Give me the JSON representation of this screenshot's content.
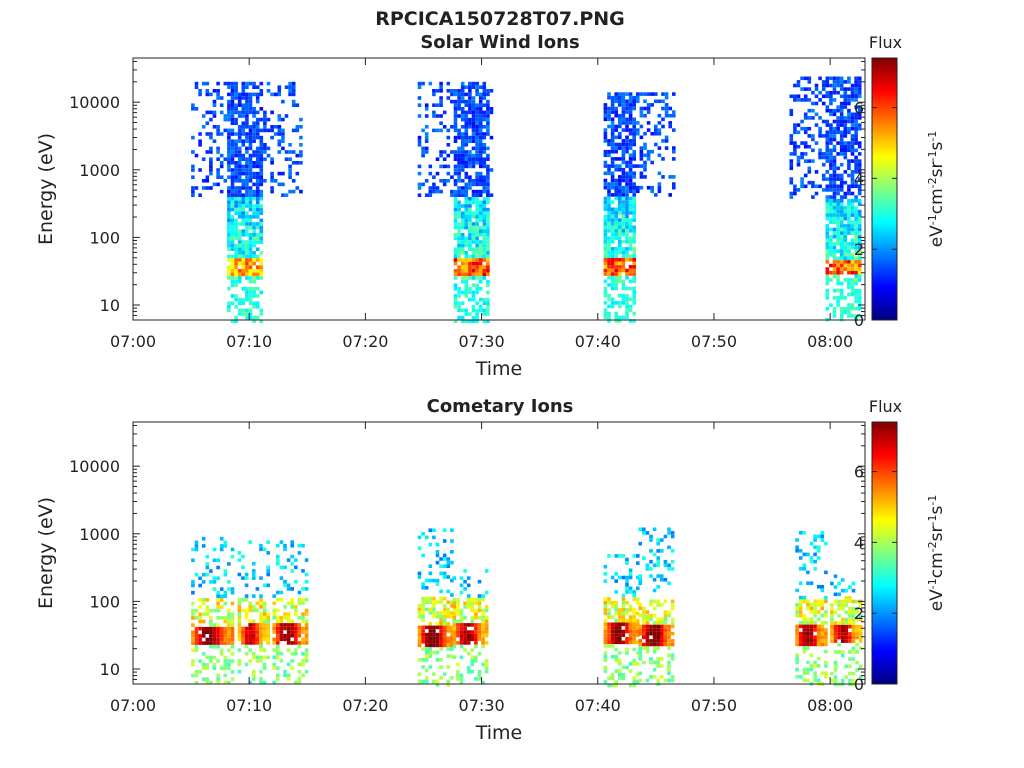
{
  "figure": {
    "title": "RPCICA150728T07.PNG"
  },
  "colorbar": {
    "label_top": "Flux",
    "unit_parts": [
      "eV",
      "-1",
      "cm",
      "-2",
      "sr",
      "-1",
      "s",
      "-1"
    ],
    "ticks": [
      "0",
      "2",
      "4",
      "6"
    ],
    "range": [
      0,
      7.4
    ],
    "colormap": "jet",
    "colormap_stops": [
      "#00007f",
      "#0000ff",
      "#007fff",
      "#00ffff",
      "#7fff7f",
      "#ffff00",
      "#ff7f00",
      "#ff0000",
      "#7f0000"
    ]
  },
  "chart_data": [
    {
      "type": "heatmap",
      "title": "Solar Wind Ions",
      "xlabel": "Time",
      "ylabel": "Energy (eV)",
      "xlim": [
        "07:00",
        "08:03"
      ],
      "ylim": [
        6,
        45000
      ],
      "yscale": "log",
      "xticks": [
        "07:00",
        "07:10",
        "07:20",
        "07:30",
        "07:40",
        "07:50",
        "08:00"
      ],
      "yticks": [
        "10",
        "100",
        "1000",
        "10000"
      ],
      "bursts": [
        {
          "start": "07:05",
          "end": "07:14.5",
          "core_start": "07:08",
          "core_end": "07:11",
          "max_energy": 20000,
          "peak_energy": 38,
          "peak_flux": 5.8
        },
        {
          "start": "07:24.5",
          "end": "07:31",
          "core_start": "07:27.5",
          "core_end": "07:30.5",
          "max_energy": 20000,
          "peak_energy": 38,
          "peak_flux": 6.5
        },
        {
          "start": "07:40.5",
          "end": "07:46.5",
          "core_start": "07:40.5",
          "core_end": "07:43",
          "max_energy": 14000,
          "peak_energy": 38,
          "peak_flux": 6.5
        },
        {
          "start": "07:56.5",
          "end": "08:02.5",
          "core_start": "07:59.5",
          "core_end": "08:02.5",
          "max_energy": 24000,
          "peak_energy": 38,
          "peak_flux": 6.4
        }
      ]
    },
    {
      "type": "heatmap",
      "title": "Cometary Ions",
      "xlabel": "Time",
      "ylabel": "Energy (eV)",
      "xlim": [
        "07:00",
        "08:03"
      ],
      "ylim": [
        6,
        45000
      ],
      "yscale": "log",
      "xticks": [
        "07:00",
        "07:10",
        "07:20",
        "07:30",
        "07:40",
        "07:50",
        "08:00"
      ],
      "yticks": [
        "10",
        "100",
        "1000",
        "10000"
      ],
      "bursts": [
        {
          "start": "07:05",
          "end": "07:08.5",
          "max_energy": 900,
          "peak_energy": 32,
          "peak_flux": 7.2
        },
        {
          "start": "07:09",
          "end": "07:11.5",
          "max_energy": 800,
          "peak_energy": 34,
          "peak_flux": 6.6
        },
        {
          "start": "07:12",
          "end": "07:15",
          "max_energy": 800,
          "peak_energy": 34,
          "peak_flux": 7.0
        },
        {
          "start": "07:24.5",
          "end": "07:27.5",
          "max_energy": 1200,
          "peak_energy": 32,
          "peak_flux": 7.2
        },
        {
          "start": "07:27.5",
          "end": "07:30.5",
          "max_energy": 300,
          "peak_energy": 36,
          "peak_flux": 6.8
        },
        {
          "start": "07:40.5",
          "end": "07:43.5",
          "max_energy": 500,
          "peak_energy": 36,
          "peak_flux": 7.0
        },
        {
          "start": "07:43.5",
          "end": "07:46.5",
          "max_energy": 1400,
          "peak_energy": 34,
          "peak_flux": 7.2
        },
        {
          "start": "07:57",
          "end": "07:59.5",
          "max_energy": 1100,
          "peak_energy": 34,
          "peak_flux": 7.0
        },
        {
          "start": "08:00",
          "end": "08:02.5",
          "max_energy": 250,
          "peak_energy": 36,
          "peak_flux": 6.8
        }
      ]
    }
  ]
}
